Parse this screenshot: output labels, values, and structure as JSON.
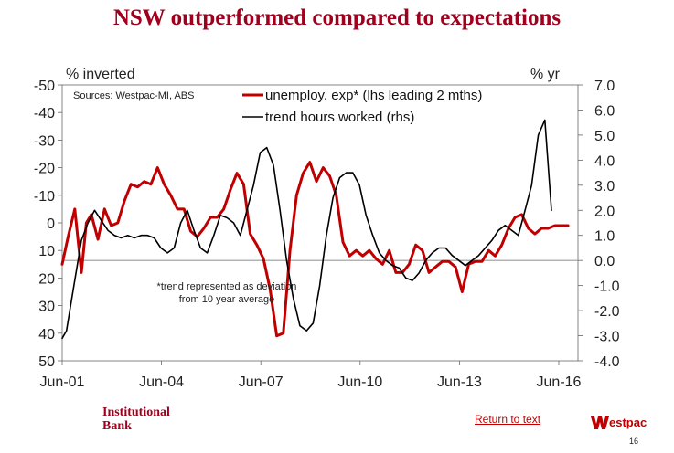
{
  "slide": {
    "title": "NSW outperformed compared to expectations",
    "source": "Sources: Westpac-MI, ABS",
    "note_line1": "*trend represented as deviation",
    "note_line2": "from 10 year average",
    "brand_line1": "Institutional",
    "brand_line2": "Bank",
    "return_link": "Return to text",
    "westpac_logo_text": "estpac",
    "page_number": "16"
  },
  "chart_data": {
    "type": "line",
    "title": "NSW outperformed compared to expectations",
    "y_left_label": "% inverted",
    "y_right_label": "% yr",
    "y_left_range": [
      50,
      -50
    ],
    "y_left_ticks": [
      "-50",
      "-40",
      "-30",
      "-20",
      "-10",
      "0",
      "10",
      "20",
      "30",
      "40",
      "50"
    ],
    "y_left_tick_values": [
      -50,
      -40,
      -30,
      -20,
      -10,
      0,
      10,
      20,
      30,
      40,
      50
    ],
    "y_right_range": [
      -4,
      7
    ],
    "y_right_ticks": [
      "7.0",
      "6.0",
      "5.0",
      "4.0",
      "3.0",
      "2.0",
      "1.0",
      "0.0",
      "-1.0",
      "-2.0",
      "-3.0",
      "-4.0"
    ],
    "y_right_tick_values": [
      7,
      6,
      5,
      4,
      3,
      2,
      1,
      0,
      -1,
      -2,
      -3,
      -4
    ],
    "x_range": [
      2001.42,
      2017.0
    ],
    "x_ticks": [
      "Jun-01",
      "Jun-04",
      "Jun-07",
      "Jun-10",
      "Jun-13",
      "Jun-16"
    ],
    "x_tick_values": [
      2001.42,
      2004.42,
      2007.42,
      2010.42,
      2013.42,
      2016.42
    ],
    "zero_line_right_axis": 0,
    "legend_position": "top-center",
    "series": [
      {
        "name": "unemploy. exp* (lhs leading 2 mths)",
        "axis": "left",
        "color": "#c00000",
        "x": [
          2001.42,
          2001.6,
          2001.8,
          2002.0,
          2002.15,
          2002.3,
          2002.5,
          2002.7,
          2002.9,
          2003.1,
          2003.3,
          2003.5,
          2003.7,
          2003.9,
          2004.1,
          2004.3,
          2004.5,
          2004.7,
          2004.9,
          2005.1,
          2005.3,
          2005.5,
          2005.7,
          2005.9,
          2006.1,
          2006.3,
          2006.5,
          2006.7,
          2006.9,
          2007.1,
          2007.3,
          2007.5,
          2007.7,
          2007.9,
          2008.1,
          2008.3,
          2008.5,
          2008.7,
          2008.9,
          2009.1,
          2009.3,
          2009.5,
          2009.7,
          2009.9,
          2010.1,
          2010.3,
          2010.5,
          2010.7,
          2010.9,
          2011.1,
          2011.3,
          2011.5,
          2011.7,
          2011.9,
          2012.1,
          2012.3,
          2012.5,
          2012.7,
          2012.9,
          2013.1,
          2013.3,
          2013.5,
          2013.7,
          2013.9,
          2014.1,
          2014.3,
          2014.5,
          2014.7,
          2014.9,
          2015.1,
          2015.3,
          2015.5,
          2015.7,
          2015.9,
          2016.1,
          2016.3,
          2016.5,
          2016.7
        ],
        "y": [
          15,
          5,
          -5,
          18,
          0,
          -3,
          6,
          -5,
          1,
          0,
          -8,
          -14,
          -13,
          -15,
          -14,
          -20,
          -14,
          -10,
          -5,
          -5,
          3,
          5,
          2,
          -2,
          -2,
          -5,
          -12,
          -18,
          -14,
          4,
          8,
          13,
          24,
          41,
          40,
          10,
          -10,
          -18,
          -22,
          -15,
          -20,
          -17,
          -10,
          7,
          12,
          10,
          12,
          10,
          13,
          15,
          10,
          18,
          18,
          15,
          8,
          10,
          18,
          16,
          14,
          14,
          16,
          25,
          15,
          14,
          14,
          10,
          12,
          8,
          2,
          -2,
          -3,
          2,
          4,
          2,
          2,
          1,
          1,
          1
        ]
      },
      {
        "name": "trend hours worked (rhs)",
        "axis": "right",
        "color": "#000000",
        "x": [
          2001.42,
          2001.55,
          2001.75,
          2002.0,
          2002.2,
          2002.4,
          2002.6,
          2002.8,
          2003.0,
          2003.2,
          2003.4,
          2003.6,
          2003.8,
          2004.0,
          2004.2,
          2004.4,
          2004.6,
          2004.8,
          2005.0,
          2005.2,
          2005.4,
          2005.6,
          2005.8,
          2006.0,
          2006.2,
          2006.4,
          2006.6,
          2006.8,
          2007.0,
          2007.2,
          2007.4,
          2007.6,
          2007.8,
          2008.0,
          2008.2,
          2008.4,
          2008.6,
          2008.8,
          2009.0,
          2009.2,
          2009.4,
          2009.6,
          2009.8,
          2010.0,
          2010.2,
          2010.4,
          2010.6,
          2010.8,
          2011.0,
          2011.2,
          2011.4,
          2011.6,
          2011.8,
          2012.0,
          2012.2,
          2012.4,
          2012.6,
          2012.8,
          2013.0,
          2013.2,
          2013.4,
          2013.6,
          2013.8,
          2014.0,
          2014.2,
          2014.4,
          2014.6,
          2014.8,
          2015.0,
          2015.2,
          2015.4,
          2015.6,
          2015.8,
          2016.0,
          2016.2
        ],
        "y": [
          -3.1,
          -2.8,
          -1.2,
          0.8,
          1.5,
          2.0,
          1.6,
          1.2,
          1.0,
          0.9,
          1.0,
          0.9,
          1.0,
          1.0,
          0.9,
          0.5,
          0.3,
          0.5,
          1.5,
          2.0,
          1.2,
          0.5,
          0.3,
          1.0,
          1.8,
          1.7,
          1.5,
          1.0,
          2.0,
          3.0,
          4.3,
          4.5,
          3.8,
          2.0,
          0.0,
          -1.5,
          -2.6,
          -2.8,
          -2.5,
          -1.0,
          1.0,
          2.5,
          3.3,
          3.5,
          3.5,
          3.0,
          1.8,
          1.0,
          0.3,
          0.0,
          -0.2,
          -0.3,
          -0.7,
          -0.8,
          -0.5,
          0.0,
          0.3,
          0.5,
          0.5,
          0.2,
          0.0,
          -0.2,
          0.0,
          0.2,
          0.5,
          0.8,
          1.2,
          1.4,
          1.2,
          1.0,
          2.0,
          3.0,
          5.0,
          5.6,
          2.0
        ]
      }
    ]
  }
}
